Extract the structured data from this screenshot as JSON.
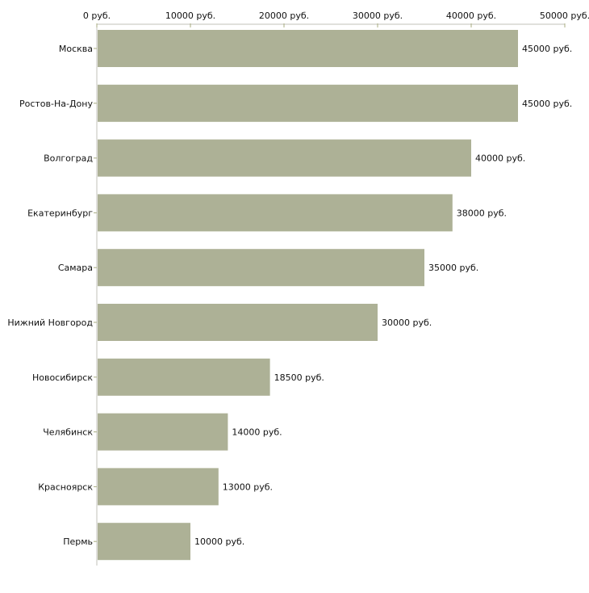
{
  "chart_data": {
    "type": "bar",
    "orientation": "horizontal",
    "title": "",
    "xlabel": "",
    "ylabel": "",
    "xlim": [
      0,
      50000
    ],
    "ticks": [
      0,
      10000,
      20000,
      30000,
      40000,
      50000
    ],
    "tick_labels": [
      "0 руб.",
      "10000 руб.",
      "20000 руб.",
      "30000 руб.",
      "40000 руб.",
      "50000 руб."
    ],
    "axis_position": "top",
    "grid": false,
    "categories": [
      "Москва",
      "Ростов-На-Дону",
      "Волгоград",
      "Екатеринбург",
      "Самара",
      "Нижний Новгород",
      "Новосибирск",
      "Челябинск",
      "Красноярск",
      "Пермь"
    ],
    "values": [
      45000,
      45000,
      40000,
      38000,
      35000,
      30000,
      18500,
      14000,
      13000,
      10000
    ],
    "value_labels": [
      "45000 руб.",
      "45000 руб.",
      "40000 руб.",
      "38000 руб.",
      "35000 руб.",
      "30000 руб.",
      "18500 руб.",
      "14000 руб.",
      "13000 руб.",
      "10000 руб."
    ],
    "colors": {
      "bar": "#adb196",
      "axis": "#c0c0b8",
      "tick": "#a8ac80"
    }
  }
}
